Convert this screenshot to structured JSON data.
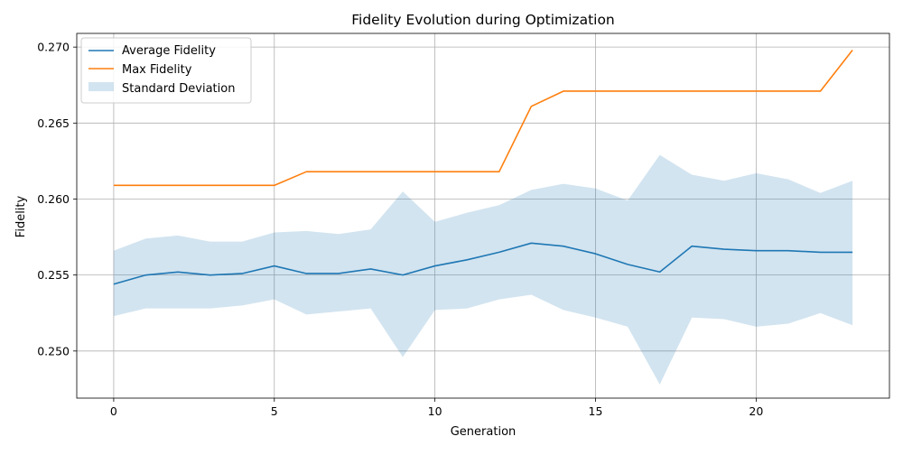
{
  "chart_data": {
    "type": "line",
    "title": "Fidelity Evolution during Optimization",
    "xlabel": "Generation",
    "ylabel": "Fidelity",
    "xlim": [
      -1.15,
      24.15
    ],
    "ylim": [
      0.2469,
      0.2709
    ],
    "x_ticks": [
      0,
      5,
      10,
      15,
      20
    ],
    "x_tick_labels": [
      "0",
      "5",
      "10",
      "15",
      "20"
    ],
    "y_ticks": [
      0.25,
      0.255,
      0.26,
      0.265,
      0.27
    ],
    "y_tick_labels": [
      "0.250",
      "0.255",
      "0.260",
      "0.265",
      "0.270"
    ],
    "grid": true,
    "legend_position": "top-left",
    "x": [
      0,
      1,
      2,
      3,
      4,
      5,
      6,
      7,
      8,
      9,
      10,
      11,
      12,
      13,
      14,
      15,
      16,
      17,
      18,
      19,
      20,
      21,
      22,
      23
    ],
    "series": [
      {
        "name": "Average Fidelity",
        "color": "#1f77b4",
        "values": [
          0.2544,
          0.255,
          0.2552,
          0.255,
          0.2551,
          0.2556,
          0.2551,
          0.2551,
          0.2554,
          0.255,
          0.2556,
          0.256,
          0.2565,
          0.2571,
          0.2569,
          0.2564,
          0.2557,
          0.2552,
          0.2569,
          0.2567,
          0.2566,
          0.2566,
          0.2565,
          0.2565
        ]
      },
      {
        "name": "Max Fidelity",
        "color": "#ff7f0e",
        "values": [
          0.2609,
          0.2609,
          0.2609,
          0.2609,
          0.2609,
          0.2609,
          0.2618,
          0.2618,
          0.2618,
          0.2618,
          0.2618,
          0.2618,
          0.2618,
          0.2661,
          0.2671,
          0.2671,
          0.2671,
          0.2671,
          0.2671,
          0.2671,
          0.2671,
          0.2671,
          0.2671,
          0.2698
        ]
      }
    ],
    "band": {
      "name": "Standard Deviation",
      "color": "#1f77b4",
      "upper": [
        0.2566,
        0.2574,
        0.2576,
        0.2572,
        0.2572,
        0.2578,
        0.2579,
        0.2577,
        0.258,
        0.2605,
        0.2585,
        0.2591,
        0.2596,
        0.2606,
        0.261,
        0.2607,
        0.2599,
        0.2629,
        0.2616,
        0.2612,
        0.2617,
        0.2613,
        0.2604,
        0.2612
      ],
      "lower": [
        0.2523,
        0.2528,
        0.2528,
        0.2528,
        0.253,
        0.2534,
        0.2524,
        0.2526,
        0.2528,
        0.2496,
        0.2527,
        0.2528,
        0.2534,
        0.2537,
        0.2527,
        0.2522,
        0.2516,
        0.2478,
        0.2522,
        0.2521,
        0.2516,
        0.2518,
        0.2525,
        0.2517
      ]
    }
  }
}
